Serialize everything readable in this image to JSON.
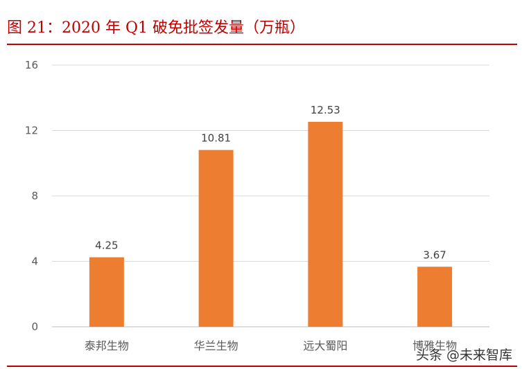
{
  "page": {
    "title": "图 21：2020 年 Q1 破免批签发量（万瓶）",
    "watermark": "头条 @未来智库",
    "accent_color": "#c00000"
  },
  "chart_data": {
    "type": "bar",
    "categories": [
      "泰邦生物",
      "华兰生物",
      "远大蜀阳",
      "博雅生物"
    ],
    "values": [
      4.25,
      10.81,
      12.53,
      3.67
    ],
    "value_labels": [
      "4.25",
      "10.81",
      "12.53",
      "3.67"
    ],
    "ylim": [
      0,
      16
    ],
    "yticks": [
      0,
      4,
      8,
      12,
      16
    ],
    "xlabel": "",
    "ylabel": "",
    "grid": true,
    "bar_color": "#ed7d31",
    "grid_color": "#d9d9d9"
  }
}
